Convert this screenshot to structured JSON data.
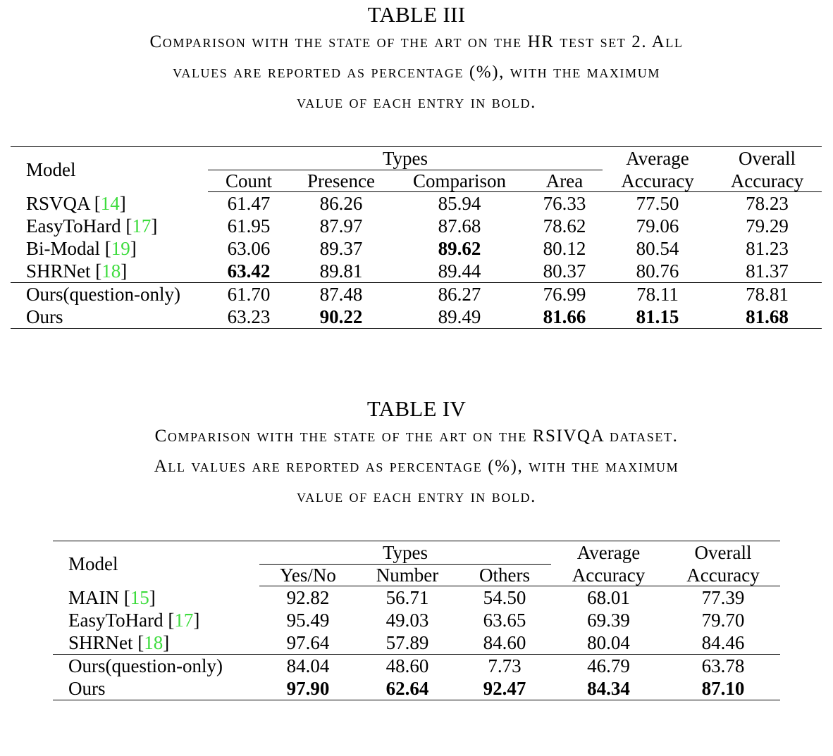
{
  "table3": {
    "number": "TABLE III",
    "caption_line1": "Comparison with the state of the art on the HR test set 2. All",
    "caption_line2": "values are reported as percentage (%), with the maximum",
    "caption_line3": "value of each entry in bold.",
    "headers": {
      "model": "Model",
      "types": "Types",
      "count": "Count",
      "presence": "Presence",
      "comparison": "Comparison",
      "area": "Area",
      "avg1": "Average",
      "avg2": "Accuracy",
      "ovr1": "Overall",
      "ovr2": "Accuracy"
    },
    "rows": [
      {
        "model": "RSVQA",
        "ref": "14",
        "count": "61.47",
        "presence": "86.26",
        "comparison": "85.94",
        "area": "76.33",
        "avg": "77.50",
        "overall": "78.23"
      },
      {
        "model": "EasyToHard",
        "ref": "17",
        "count": "61.95",
        "presence": "87.97",
        "comparison": "87.68",
        "area": "78.62",
        "avg": "79.06",
        "overall": "79.29"
      },
      {
        "model": "Bi-Modal",
        "ref": "19",
        "count": "63.06",
        "presence": "89.37",
        "comparison": "89.62",
        "area": "80.12",
        "avg": "80.54",
        "overall": "81.23"
      },
      {
        "model": "SHRNet",
        "ref": "18",
        "count": "63.42",
        "presence": "89.81",
        "comparison": "89.44",
        "area": "80.37",
        "avg": "80.76",
        "overall": "81.37"
      },
      {
        "model": "Ours(question-only)",
        "ref": "",
        "count": "61.70",
        "presence": "87.48",
        "comparison": "86.27",
        "area": "76.99",
        "avg": "78.11",
        "overall": "78.81"
      },
      {
        "model": "Ours",
        "ref": "",
        "count": "63.23",
        "presence": "90.22",
        "comparison": "89.49",
        "area": "81.66",
        "avg": "81.15",
        "overall": "81.68"
      }
    ]
  },
  "table4": {
    "number": "TABLE IV",
    "caption_line1": "Comparison with the state of the art on the RSIVQA dataset.",
    "caption_line2": "All values are reported as percentage (%), with the maximum",
    "caption_line3": "value of each entry in bold.",
    "headers": {
      "model": "Model",
      "types": "Types",
      "yesno": "Yes/No",
      "number": "Number",
      "others": "Others",
      "avg1": "Average",
      "avg2": "Accuracy",
      "ovr1": "Overall",
      "ovr2": "Accuracy"
    },
    "rows": [
      {
        "model": "MAIN",
        "ref": "15",
        "yesno": "92.82",
        "number": "56.71",
        "others": "54.50",
        "avg": "68.01",
        "overall": "77.39"
      },
      {
        "model": "EasyToHard",
        "ref": "17",
        "yesno": "95.49",
        "number": "49.03",
        "others": "63.65",
        "avg": "69.39",
        "overall": "79.70"
      },
      {
        "model": "SHRNet",
        "ref": "18",
        "yesno": "97.64",
        "number": "57.89",
        "others": "84.60",
        "avg": "80.04",
        "overall": "84.46"
      },
      {
        "model": "Ours(question-only)",
        "ref": "",
        "yesno": "84.04",
        "number": "48.60",
        "others": "7.73",
        "avg": "46.79",
        "overall": "63.78"
      },
      {
        "model": "Ours",
        "ref": "",
        "yesno": "97.90",
        "number": "62.64",
        "others": "92.47",
        "avg": "84.34",
        "overall": "87.10"
      }
    ]
  }
}
